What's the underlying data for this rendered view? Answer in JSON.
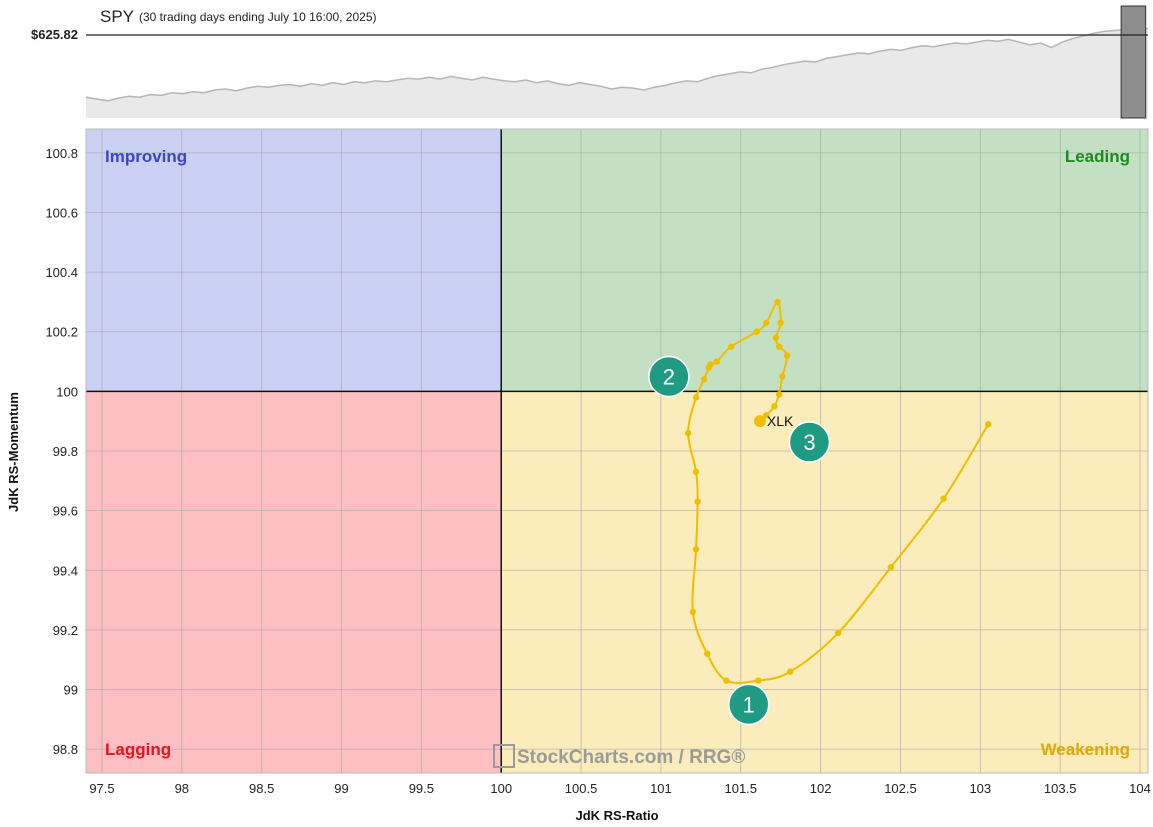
{
  "header": {
    "symbol": "SPY",
    "subtitle": "(30 trading days ending July 10 16:00, 2025)",
    "price_label": "$625.82"
  },
  "chart_data": {
    "type": "line",
    "title": "SPY (30 trading days ending July 10 16:00, 2025)",
    "xlabel": "JdK RS-Ratio",
    "ylabel": "JdK RS-Momentum",
    "xlim": [
      97.4,
      104.05
    ],
    "ylim": [
      98.72,
      100.88
    ],
    "x_ticks": [
      97.5,
      98,
      98.5,
      99,
      99.5,
      100,
      100.5,
      101,
      101.5,
      102,
      102.5,
      103,
      103.5,
      104
    ],
    "x_tick_labels": [
      "97.5",
      "98",
      "98.5",
      "99",
      "99.5",
      "100",
      "100.5",
      "101",
      "101.5",
      "102",
      "102.5",
      "103",
      "103.5",
      "104"
    ],
    "y_ticks": [
      98.8,
      99,
      99.2,
      99.4,
      99.6,
      99.8,
      100,
      100.2,
      100.4,
      100.6,
      100.8
    ],
    "y_tick_labels": [
      "98.8",
      "99",
      "99.2",
      "99.4",
      "99.6",
      "99.8",
      "100",
      "100.2",
      "100.4",
      "100.6",
      "100.8"
    ],
    "grid": true,
    "center": [
      100,
      100
    ],
    "quadrants": [
      {
        "name": "Improving",
        "color": "#cbd0f5",
        "label_color": "#3a46c8",
        "corner": "top-left"
      },
      {
        "name": "Leading",
        "color": "#c3e0c3",
        "label_color": "#1f8a1f",
        "corner": "top-right"
      },
      {
        "name": "Lagging",
        "color": "#fdbfc2",
        "label_color": "#e8141e",
        "corner": "bottom-left"
      },
      {
        "name": "Weakening",
        "color": "#fbecbc",
        "label_color": "#e0a800",
        "corner": "bottom-right"
      }
    ],
    "series": [
      {
        "name": "XLK",
        "color": "#f0be00",
        "x": [
          103.05,
          102.77,
          102.44,
          102.11,
          101.81,
          101.61,
          101.41,
          101.29,
          101.2,
          101.22,
          101.23,
          101.22,
          101.17,
          101.22,
          101.27,
          101.3,
          101.31,
          101.35,
          101.44,
          101.6,
          101.66,
          101.73,
          101.75,
          101.72,
          101.74,
          101.79,
          101.76,
          101.74,
          101.71,
          101.66,
          101.62
        ],
        "y": [
          99.89,
          99.64,
          99.41,
          99.19,
          99.06,
          99.03,
          99.03,
          99.12,
          99.26,
          99.47,
          99.63,
          99.73,
          99.86,
          99.98,
          100.04,
          100.08,
          100.09,
          100.1,
          100.15,
          100.2,
          100.23,
          100.3,
          100.23,
          100.18,
          100.15,
          100.12,
          100.05,
          99.99,
          99.95,
          99.92,
          99.9
        ]
      }
    ],
    "annotations": [
      {
        "text": "1",
        "x": 101.55,
        "y": 98.95
      },
      {
        "text": "2",
        "x": 101.05,
        "y": 100.05
      },
      {
        "text": "3",
        "x": 101.93,
        "y": 99.83
      }
    ],
    "watermark": "StockCharts.com / RRG®",
    "overview": {
      "symbol": "SPY",
      "last_price": 625.82,
      "line_color": "#b5b5b5",
      "fill_color": "#e9e9e9",
      "highlight_color": "#8e8e8e",
      "values": [
        0.17,
        0.15,
        0.13,
        0.16,
        0.18,
        0.17,
        0.2,
        0.19,
        0.22,
        0.21,
        0.23,
        0.22,
        0.25,
        0.26,
        0.24,
        0.27,
        0.29,
        0.28,
        0.3,
        0.31,
        0.29,
        0.32,
        0.3,
        0.33,
        0.31,
        0.34,
        0.33,
        0.35,
        0.34,
        0.36,
        0.38,
        0.37,
        0.39,
        0.37,
        0.4,
        0.38,
        0.36,
        0.39,
        0.37,
        0.35,
        0.34,
        0.36,
        0.33,
        0.35,
        0.32,
        0.3,
        0.33,
        0.31,
        0.29,
        0.26,
        0.28,
        0.27,
        0.25,
        0.28,
        0.3,
        0.33,
        0.35,
        0.34,
        0.38,
        0.41,
        0.43,
        0.45,
        0.44,
        0.48,
        0.5,
        0.53,
        0.55,
        0.57,
        0.56,
        0.6,
        0.62,
        0.64,
        0.66,
        0.65,
        0.68,
        0.7,
        0.69,
        0.72,
        0.74,
        0.73,
        0.75,
        0.77,
        0.76,
        0.78,
        0.8,
        0.79,
        0.81,
        0.78,
        0.75,
        0.77,
        0.72,
        0.78,
        0.82,
        0.85,
        0.88,
        0.9,
        0.91,
        0.92,
        0.94,
        0.93
      ],
      "highlight_range": [
        0.9747,
        0.9978
      ]
    }
  }
}
